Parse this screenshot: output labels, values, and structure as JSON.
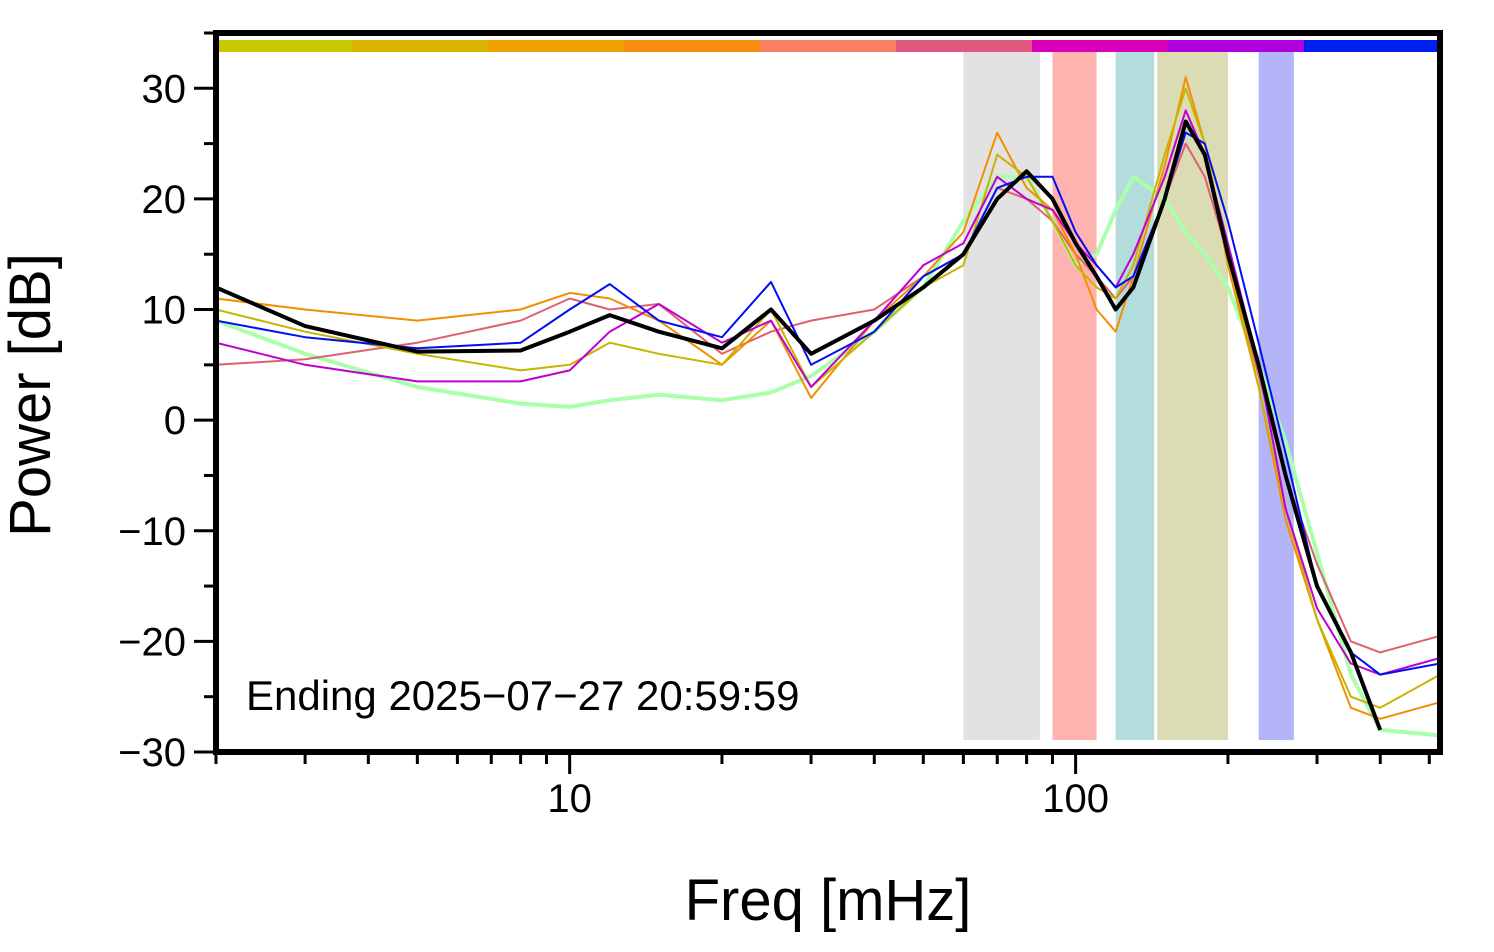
{
  "chart_data": {
    "type": "line",
    "xlabel": "Freq [mHz]",
    "ylabel": "Power [dB]",
    "annotation": "Ending 2025−07−27 20:59:59",
    "xscale": "log",
    "xlim": [
      2,
      525
    ],
    "ylim": [
      -30,
      35
    ],
    "xticks": [
      10,
      100
    ],
    "xminorticks": [
      2,
      3,
      4,
      5,
      6,
      7,
      8,
      9,
      20,
      30,
      40,
      50,
      60,
      70,
      80,
      90,
      200,
      300,
      400,
      500
    ],
    "yticks": [
      {
        "value": -30,
        "label": "−30"
      },
      {
        "value": -20,
        "label": "−20"
      },
      {
        "value": -10,
        "label": "−10"
      },
      0,
      10,
      20,
      30
    ],
    "yminorticks": [
      -25,
      -15,
      -5,
      5,
      15,
      25,
      35
    ],
    "bands": [
      {
        "x": [
          60,
          85
        ],
        "color": "#e2e2e2"
      },
      {
        "x": [
          90,
          110
        ],
        "color": "#ffb3b0"
      },
      {
        "x": [
          120,
          143
        ],
        "color": "#b3dcdc"
      },
      {
        "x": [
          145,
          200
        ],
        "color": "#dbdbb4"
      },
      {
        "x": [
          230,
          270
        ],
        "color": "#b4b4f8"
      }
    ],
    "x": [
      2,
      3,
      5,
      8,
      10,
      12,
      15,
      20,
      25,
      30,
      40,
      50,
      60,
      70,
      80,
      90,
      100,
      110,
      120,
      130,
      150,
      165,
      180,
      200,
      230,
      260,
      300,
      350,
      400,
      525
    ],
    "series": [
      {
        "color": "#aaffaa",
        "width": 4,
        "values": [
          9,
          6,
          3,
          1.5,
          1.2,
          1.8,
          2.3,
          1.8,
          2.5,
          4,
          8,
          12,
          18,
          22,
          22,
          18,
          14,
          15,
          19,
          22,
          20,
          17,
          15,
          12,
          5,
          -2,
          -12,
          -23,
          -28,
          -28.5
        ]
      },
      {
        "color": "#e06070",
        "width": 2,
        "values": [
          5,
          5.5,
          7,
          9,
          11,
          10,
          10.5,
          6,
          8,
          9,
          10,
          13,
          15,
          21,
          20,
          18,
          15,
          13,
          11,
          13,
          20,
          25,
          22,
          15,
          4,
          -5,
          -13,
          -20,
          -21,
          -19.5
        ]
      },
      {
        "color": "#f09000",
        "width": 2,
        "values": [
          11,
          10,
          9,
          10,
          11.5,
          11,
          9,
          5,
          9,
          2,
          9,
          13,
          17,
          26,
          21,
          19,
          15,
          10,
          8,
          13,
          23,
          31,
          25,
          14,
          3,
          -9,
          -18,
          -26,
          -27,
          -25.5
        ]
      },
      {
        "color": "#c8b400",
        "width": 2,
        "values": [
          10,
          8,
          6,
          4.5,
          5,
          7,
          6,
          5,
          10,
          3,
          8,
          12,
          14,
          24,
          22,
          18,
          14,
          12,
          11,
          14,
          24,
          30,
          25,
          15,
          3,
          -8,
          -18,
          -25,
          -26,
          -23
        ]
      },
      {
        "color": "#c000d0",
        "width": 2,
        "values": [
          7,
          5,
          3.5,
          3.5,
          4.5,
          8,
          10.5,
          7,
          9,
          3,
          9,
          14,
          16,
          22,
          20,
          19,
          16,
          14,
          12,
          15,
          22,
          28,
          24,
          16,
          5,
          -8,
          -17,
          -22,
          -23,
          -21.5
        ]
      },
      {
        "color": "#0010f0",
        "width": 2,
        "values": [
          9,
          7.5,
          6.5,
          7,
          10,
          12.3,
          9,
          7.5,
          12.5,
          5,
          8,
          13,
          15,
          21,
          22,
          22,
          17,
          14,
          12,
          13,
          20,
          26,
          25,
          18,
          7,
          -3,
          -15,
          -21,
          -23,
          -22
        ]
      },
      {
        "color": "#000000",
        "width": 4,
        "values": [
          12,
          8.5,
          6.2,
          6.3,
          8,
          9.5,
          8,
          6.5,
          10,
          6,
          9,
          12,
          15,
          20,
          22.5,
          20,
          16,
          13,
          10,
          12,
          20,
          27,
          24,
          15,
          5,
          -5,
          -15,
          -21,
          -28,
          null
        ]
      }
    ]
  }
}
